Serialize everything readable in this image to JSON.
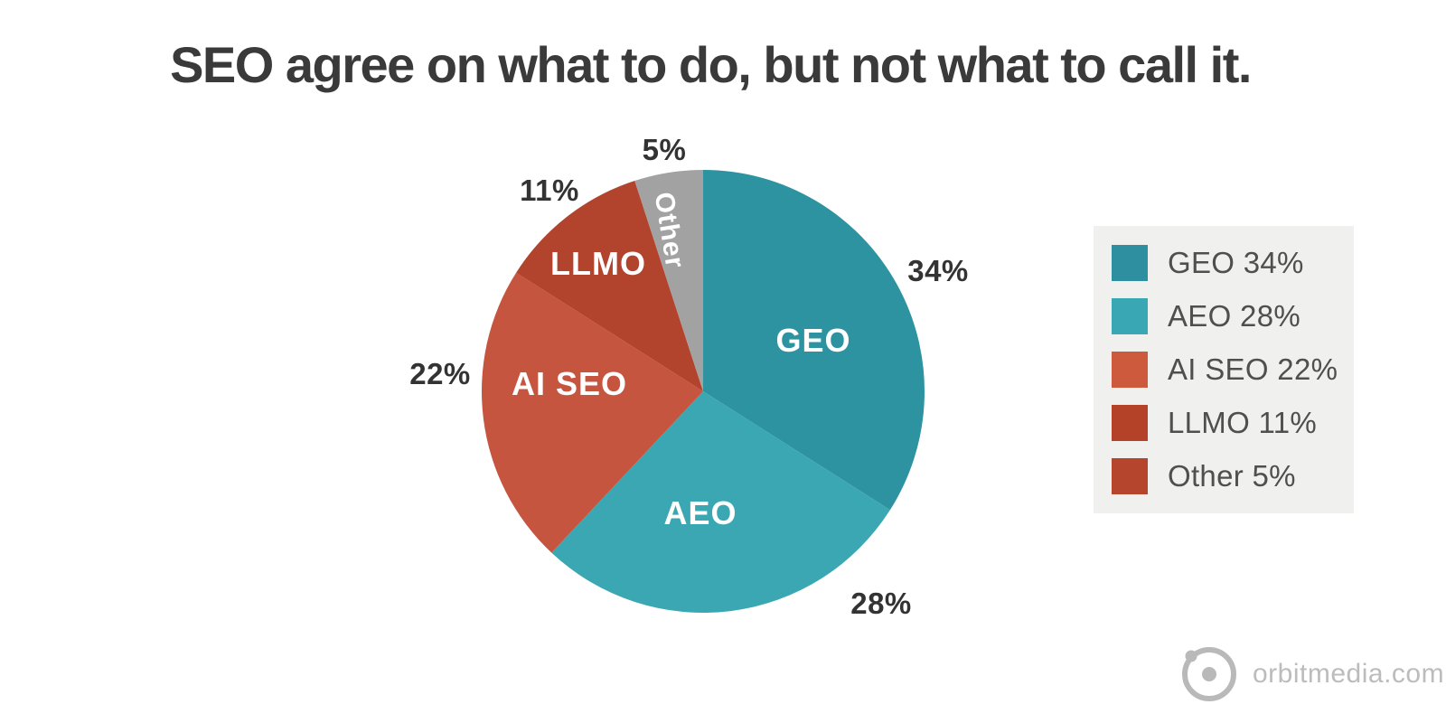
{
  "title": "SEO agree on what to do, but not what to call it.",
  "chart_data": {
    "type": "pie",
    "title": "SEO agree on what to do, but not what to call it.",
    "start_angle_deg": 0,
    "direction": "clockwise",
    "legend_position": "right",
    "legend_background": "#f0f0ee",
    "slices": [
      {
        "name": "GEO",
        "value": 34,
        "pct_label": "34%",
        "legend_label": "GEO 34%",
        "color": "#2e93a0",
        "legend_color": "#2e8fa0"
      },
      {
        "name": "AEO",
        "value": 28,
        "pct_label": "28%",
        "legend_label": "AEO 28%",
        "color": "#3aa7b2",
        "legend_color": "#3aa8b4"
      },
      {
        "name": "AI SEO",
        "value": 22,
        "pct_label": "22%",
        "legend_label": "AI SEO 22%",
        "color": "#c65540",
        "legend_color": "#cd5a3c"
      },
      {
        "name": "LLMO",
        "value": 11,
        "pct_label": "11%",
        "legend_label": "LLMO 11%",
        "color": "#b2432c",
        "legend_color": "#b34229"
      },
      {
        "name": "Other",
        "value": 5,
        "pct_label": "5%",
        "legend_label": "Other 5%",
        "color": "#a3a2a2",
        "legend_color": "#b5452c"
      }
    ]
  },
  "footer": {
    "brand": "orbitmedia.com"
  },
  "colors": {
    "title_text": "#3a3a3a",
    "percent_text": "#333333",
    "slice_text": "#ffffff",
    "legend_text": "#4f4f4f",
    "logo_gray": "#b9b9b9"
  }
}
